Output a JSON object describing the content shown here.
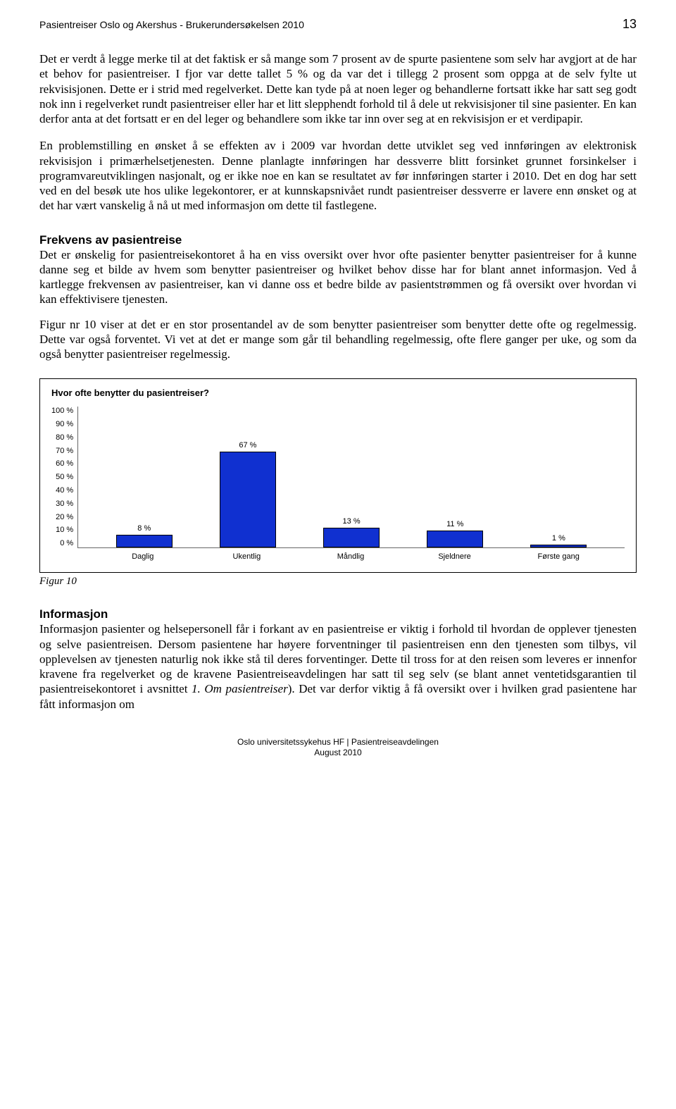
{
  "header": {
    "doc_title": "Pasientreiser Oslo og Akershus - Brukerundersøkelsen 2010",
    "page_number": "13"
  },
  "para1": "Det er verdt å legge merke til at det faktisk er så mange som 7 prosent av de spurte pasientene som selv har avgjort at de har et behov for pasientreiser. I fjor var dette tallet 5 % og da var det i tillegg 2 prosent som oppga at de selv fylte ut rekvisisjonen. Dette er i strid med regelverket. Dette kan tyde på at noen leger og behandlerne fortsatt ikke har satt seg godt nok inn i regelverket rundt pasientreiser eller har et litt slepphendt forhold til å dele ut rekvisisjoner til sine pasienter. En kan derfor anta at det fortsatt er en del leger og behandlere som ikke tar inn over seg at en rekvisisjon er et verdipapir.",
  "para2": "En problemstilling en ønsket å se effekten av i 2009 var hvordan dette utviklet seg ved innføringen av elektronisk rekvisisjon i primærhelsetjenesten. Denne planlagte innføringen har dessverre blitt forsinket grunnet forsinkelser i programvareutviklingen nasjonalt, og er ikke noe en kan se resultatet av før innføringen starter i 2010. Det en dog har sett ved en del besøk ute hos ulike legekontorer, er at kunnskapsnivået rundt pasientreiser dessverre er lavere enn ønsket og at det har vært vanskelig å nå ut med informasjon om dette til fastlegene.",
  "section1": {
    "heading": "Frekvens av pasientreise",
    "body1": "Det er ønskelig for pasientreisekontoret å ha en viss oversikt over hvor ofte pasienter benytter pasientreiser for å kunne danne seg et bilde av hvem som benytter pasientreiser og hvilket behov disse har for blant annet informasjon. Ved å kartlegge frekvensen av pasientreiser, kan vi danne oss et bedre bilde av pasientstrømmen og få oversikt over hvordan vi kan effektivisere tjenesten.",
    "body2": "Figur nr 10 viser at det er en stor prosentandel av de som benytter pasientreiser som benytter dette ofte og regelmessig. Dette var også forventet. Vi vet at det er mange som går til behandling regelmessig, ofte flere ganger per uke, og som da også benytter pasientreiser regelmessig."
  },
  "chart": {
    "title": "Hvor ofte benytter du pasientreiser?",
    "y_ticks": [
      "100 %",
      "90 %",
      "80 %",
      "70 %",
      "60 %",
      "50 %",
      "40 %",
      "30 %",
      "20 %",
      "10 %",
      "0 %"
    ],
    "categories": [
      "Daglig",
      "Ukentlig",
      "Måndlig",
      "Sjeldnere",
      "Første gang"
    ],
    "values": [
      8,
      67,
      13,
      11,
      1
    ],
    "value_labels": [
      "8 %",
      "67 %",
      "13 %",
      "11 %",
      "1 %"
    ],
    "bar_fill": "#1030d0",
    "bar_border": "#000000",
    "ymax": 100
  },
  "figure_caption": "Figur 10",
  "section2": {
    "heading": "Informasjon",
    "body_pre": "Informasjon pasienter og helsepersonell får i forkant av en pasientreise er viktig i forhold til hvordan de opplever tjenesten og selve pasientreisen. Dersom pasientene har høyere forventninger til pasientreisen enn den tjenesten som tilbys, vil opplevelsen av tjenesten naturlig nok ikke stå til deres forventinger. Dette til tross for at den reisen som leveres er innenfor kravene fra regelverket og de kravene Pasientreiseavdelingen har satt til seg selv (se blant annet ventetidsgarantien til pasientreisekontoret i avsnittet ",
    "body_italic": "1. Om pasientreiser",
    "body_post": "). Det var derfor viktig å få oversikt over i hvilken grad pasientene har fått informasjon om"
  },
  "footer": {
    "line1": "Oslo universitetssykehus HF | Pasientreiseavdelingen",
    "line2": "August 2010"
  }
}
